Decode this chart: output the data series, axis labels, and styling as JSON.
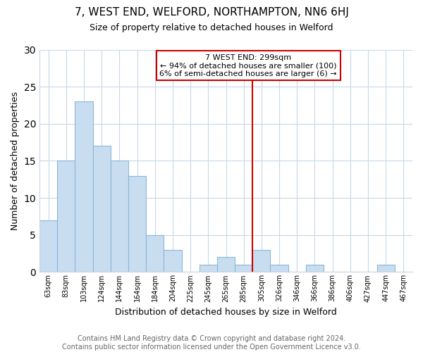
{
  "title": "7, WEST END, WELFORD, NORTHAMPTON, NN6 6HJ",
  "subtitle": "Size of property relative to detached houses in Welford",
  "xlabel": "Distribution of detached houses by size in Welford",
  "ylabel": "Number of detached properties",
  "footer_line1": "Contains HM Land Registry data © Crown copyright and database right 2024.",
  "footer_line2": "Contains public sector information licensed under the Open Government Licence v3.0.",
  "bins": [
    "63sqm",
    "83sqm",
    "103sqm",
    "124sqm",
    "144sqm",
    "164sqm",
    "184sqm",
    "204sqm",
    "225sqm",
    "245sqm",
    "265sqm",
    "285sqm",
    "305sqm",
    "326sqm",
    "346sqm",
    "366sqm",
    "386sqm",
    "406sqm",
    "427sqm",
    "447sqm",
    "467sqm"
  ],
  "values": [
    7,
    15,
    23,
    17,
    15,
    13,
    5,
    3,
    0,
    1,
    2,
    1,
    3,
    1,
    0,
    1,
    0,
    0,
    0,
    1,
    0
  ],
  "bar_color": "#c8ddf0",
  "bar_edge_color": "#8ab8d8",
  "grid_color": "#c8d8e8",
  "vline_color": "#cc0000",
  "annotation_title": "7 WEST END: 299sqm",
  "annotation_line1": "← 94% of detached houses are smaller (100)",
  "annotation_line2": "6% of semi-detached houses are larger (6) →",
  "annotation_box_facecolor": "#ffffff",
  "annotation_box_edgecolor": "#cc0000",
  "ylim": [
    0,
    30
  ],
  "yticks": [
    0,
    5,
    10,
    15,
    20,
    25,
    30
  ],
  "vline_bin_index": 12,
  "title_fontsize": 11,
  "subtitle_fontsize": 9,
  "ylabel_fontsize": 9,
  "xlabel_fontsize": 9,
  "tick_fontsize": 7,
  "annotation_fontsize": 8,
  "footer_fontsize": 7
}
